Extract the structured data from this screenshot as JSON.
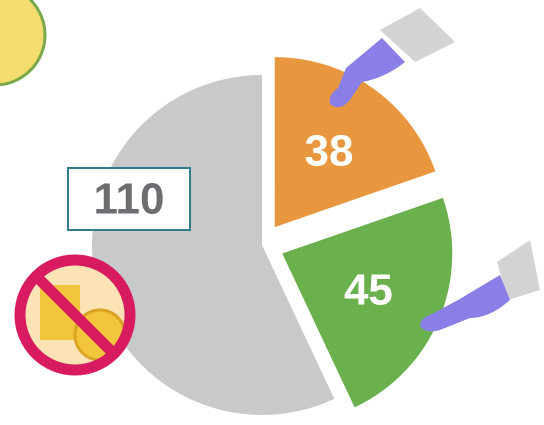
{
  "chart_data": {
    "type": "pie",
    "values": [
      38,
      45,
      110
    ],
    "colors": [
      "#e8973f",
      "#6ab04c",
      "#c8c9cb"
    ],
    "start_angle": -90
  }
}
